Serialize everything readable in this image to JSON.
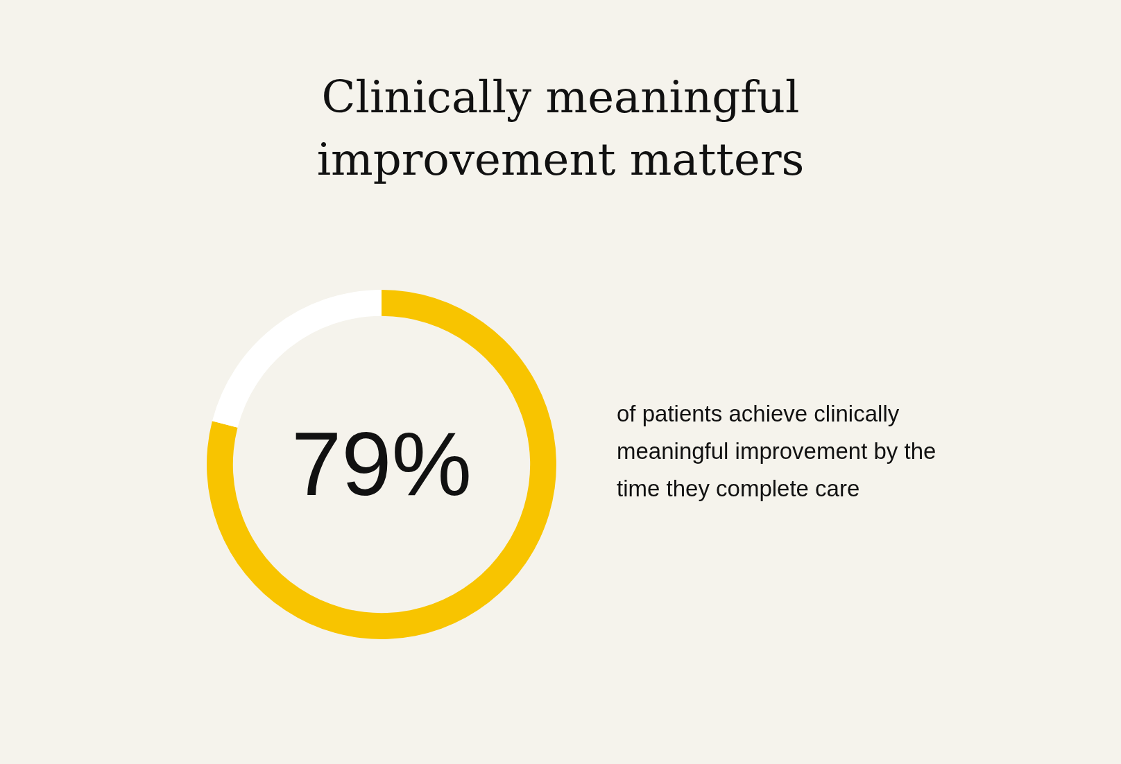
{
  "chart_data": {
    "type": "donut",
    "title": "Clinically meaningful improvement matters",
    "categories": [
      null,
      null
    ],
    "values": [
      79,
      21
    ],
    "colors": [
      "#f8c400",
      "#ffffff"
    ],
    "value_labels": [
      "79%",
      null
    ],
    "annotations": [
      "of patients achieve clinically meaningful improvement by the time they complete care"
    ],
    "legend": false
  }
}
